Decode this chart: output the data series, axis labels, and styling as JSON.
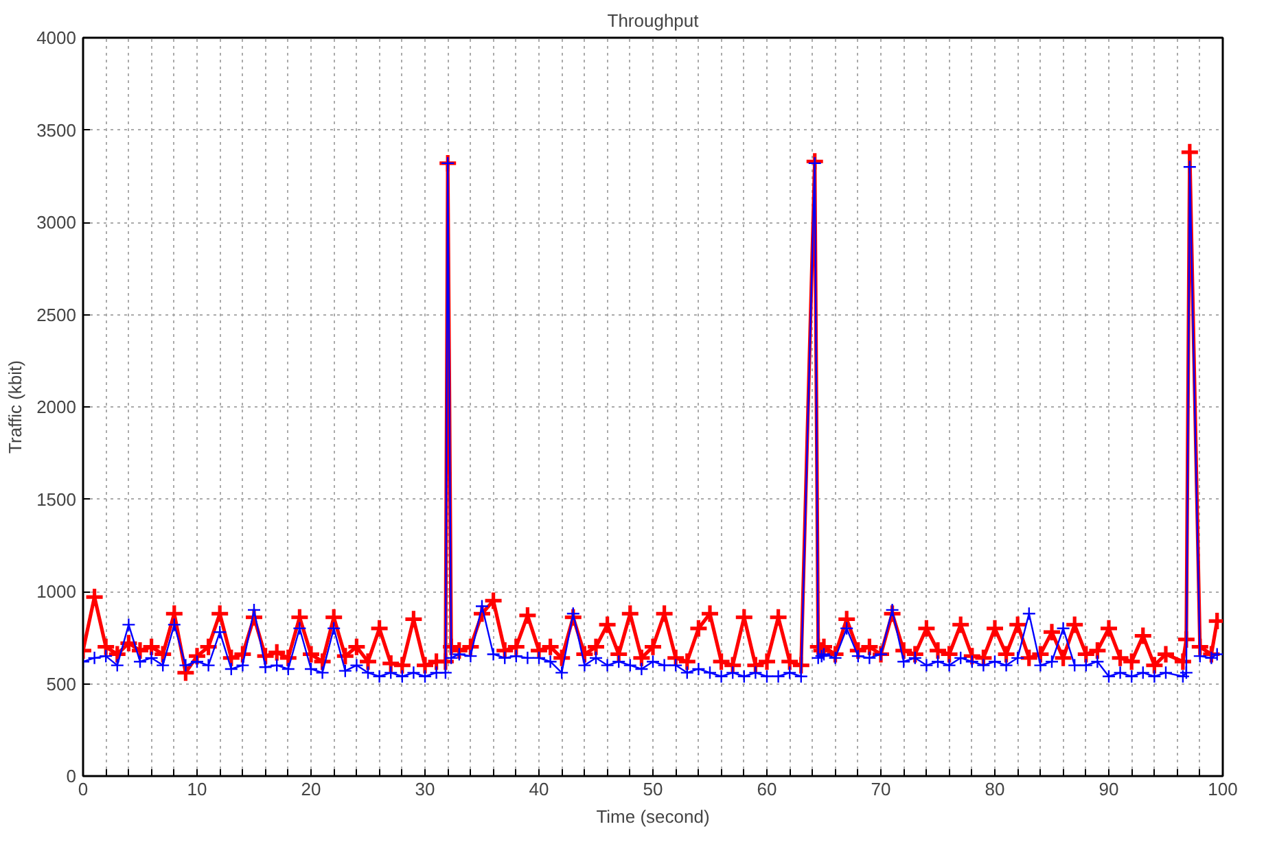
{
  "chart_data": {
    "type": "line",
    "title": "Throughput",
    "xlabel": "Time (second)",
    "ylabel": "Traffic (kbit)",
    "xlim": [
      0,
      100
    ],
    "ylim": [
      0,
      4000
    ],
    "xticks": [
      0,
      {
        "value": 2,
        "label": null
      },
      {
        "value": 4,
        "label": null
      },
      {
        "value": 6,
        "label": null
      },
      {
        "value": 8,
        "label": null
      },
      10,
      {
        "value": 12,
        "label": null
      },
      {
        "value": 14,
        "label": null
      },
      {
        "value": 16,
        "label": null
      },
      {
        "value": 18,
        "label": null
      },
      20,
      {
        "value": 22,
        "label": null
      },
      {
        "value": 24,
        "label": null
      },
      {
        "value": 26,
        "label": null
      },
      {
        "value": 28,
        "label": null
      },
      30,
      {
        "value": 32,
        "label": null
      },
      {
        "value": 34,
        "label": null
      },
      {
        "value": 36,
        "label": null
      },
      {
        "value": 38,
        "label": null
      },
      40,
      {
        "value": 42,
        "label": null
      },
      {
        "value": 44,
        "label": null
      },
      {
        "value": 46,
        "label": null
      },
      {
        "value": 48,
        "label": null
      },
      50,
      {
        "value": 52,
        "label": null
      },
      {
        "value": 54,
        "label": null
      },
      {
        "value": 56,
        "label": null
      },
      {
        "value": 58,
        "label": null
      },
      60,
      {
        "value": 62,
        "label": null
      },
      {
        "value": 64,
        "label": null
      },
      {
        "value": 66,
        "label": null
      },
      {
        "value": 68,
        "label": null
      },
      70,
      {
        "value": 72,
        "label": null
      },
      {
        "value": 74,
        "label": null
      },
      {
        "value": 76,
        "label": null
      },
      {
        "value": 78,
        "label": null
      },
      80,
      {
        "value": 82,
        "label": null
      },
      {
        "value": 84,
        "label": null
      },
      {
        "value": 86,
        "label": null
      },
      {
        "value": 88,
        "label": null
      },
      90,
      {
        "value": 92,
        "label": null
      },
      {
        "value": 94,
        "label": null
      },
      {
        "value": 96,
        "label": null
      },
      {
        "value": 98,
        "label": null
      },
      100
    ],
    "yticks": [
      0,
      500,
      1000,
      1500,
      2000,
      2500,
      3000,
      3500,
      4000
    ],
    "grid": true,
    "marker": "cross",
    "line_style": "solid",
    "series": [
      {
        "color": "#ff0000",
        "x": [
          0,
          1,
          2,
          3,
          4,
          5,
          6,
          7,
          8,
          9,
          10,
          11,
          12,
          13,
          14,
          15,
          16,
          17,
          18,
          19,
          20,
          21,
          22,
          23,
          24,
          25,
          26,
          27,
          28,
          29,
          30,
          31,
          31.8,
          32,
          32.3,
          33,
          34,
          35,
          36,
          37,
          38,
          39,
          40,
          41,
          42,
          43,
          44,
          45,
          46,
          47,
          48,
          49,
          50,
          51,
          52,
          53,
          54,
          55,
          56,
          57,
          58,
          59,
          60,
          61,
          62,
          63,
          64.2,
          64.5,
          64.8,
          65,
          66,
          67,
          68,
          69,
          70,
          71,
          72,
          73,
          74,
          75,
          76,
          77,
          78,
          79,
          80,
          81,
          82,
          83,
          84,
          85,
          86,
          87,
          88,
          89,
          90,
          91,
          92,
          93,
          94,
          95,
          96.5,
          96.8,
          97.1,
          98,
          99,
          99.5
        ],
        "values": [
          680,
          970,
          700,
          660,
          720,
          680,
          700,
          660,
          880,
          560,
          650,
          700,
          880,
          640,
          660,
          860,
          650,
          670,
          640,
          860,
          660,
          620,
          860,
          650,
          700,
          620,
          800,
          610,
          600,
          850,
          600,
          620,
          620,
          3320,
          700,
          680,
          700,
          880,
          950,
          680,
          700,
          870,
          680,
          700,
          640,
          860,
          660,
          700,
          820,
          660,
          880,
          640,
          700,
          880,
          640,
          620,
          800,
          880,
          620,
          600,
          860,
          600,
          620,
          860,
          620,
          600,
          3330,
          700,
          680,
          700,
          660,
          850,
          680,
          700,
          660,
          880,
          680,
          660,
          800,
          680,
          660,
          820,
          650,
          640,
          800,
          660,
          820,
          640,
          660,
          780,
          640,
          820,
          660,
          680,
          800,
          640,
          620,
          760,
          600,
          660,
          620,
          740,
          3380,
          700,
          660,
          840
        ]
      },
      {
        "color": "#0000ff",
        "x": [
          0,
          1,
          2,
          3,
          4,
          5,
          6,
          7,
          8,
          9,
          10,
          11,
          12,
          13,
          14,
          15,
          16,
          17,
          18,
          19,
          20,
          21,
          22,
          23,
          24,
          25,
          26,
          27,
          28,
          29,
          30,
          31,
          31.8,
          32,
          32.3,
          33,
          34,
          35,
          36,
          37,
          38,
          39,
          40,
          41,
          42,
          43,
          44,
          45,
          46,
          47,
          48,
          49,
          50,
          51,
          52,
          53,
          54,
          55,
          56,
          57,
          58,
          59,
          60,
          61,
          62,
          63,
          64.2,
          64.5,
          64.8,
          65,
          66,
          67,
          68,
          69,
          70,
          71,
          72,
          73,
          74,
          75,
          76,
          77,
          78,
          79,
          80,
          81,
          82,
          83,
          84,
          85,
          86,
          87,
          88,
          89,
          90,
          91,
          92,
          93,
          94,
          95,
          96.5,
          96.8,
          97.1,
          98,
          99,
          99.5
        ],
        "values": [
          620,
          640,
          650,
          600,
          820,
          620,
          640,
          600,
          820,
          600,
          620,
          600,
          780,
          580,
          600,
          900,
          590,
          600,
          580,
          800,
          580,
          560,
          800,
          570,
          600,
          560,
          540,
          560,
          540,
          560,
          540,
          560,
          560,
          3320,
          640,
          660,
          650,
          920,
          660,
          640,
          650,
          640,
          640,
          620,
          560,
          880,
          600,
          640,
          600,
          620,
          600,
          580,
          620,
          600,
          600,
          560,
          580,
          560,
          540,
          560,
          540,
          560,
          540,
          540,
          560,
          540,
          3320,
          640,
          650,
          660,
          640,
          800,
          650,
          640,
          660,
          900,
          620,
          640,
          600,
          620,
          600,
          640,
          620,
          600,
          620,
          600,
          640,
          880,
          600,
          620,
          800,
          600,
          600,
          620,
          540,
          560,
          540,
          560,
          540,
          560,
          540,
          560,
          3300,
          650,
          640,
          660
        ]
      }
    ]
  }
}
